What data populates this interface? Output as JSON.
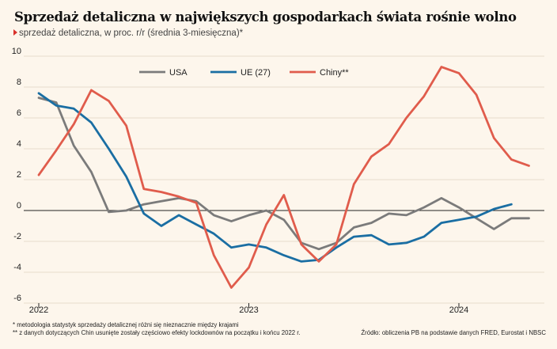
{
  "title": "Sprzedaż detaliczna w największych gospodarkach świata rośnie wolno",
  "subtitle": "sprzedaż detaliczna, w proc. r/r (średnia 3-miesięczna)*",
  "footnotes": [
    "* metodologia statystyk sprzedaży detalicznej różni się nieznacznie między krajami",
    "** z danych dotyczących Chin usunięte zostały częściowo efekty lockdownów na początku i końcu 2022 r."
  ],
  "source": "Źródło: obliczenia PB na podstawie danych FRED, Eurostat i NBSC",
  "colors": {
    "USA": "#7b7b7b",
    "UE (27)": "#1a6ea3",
    "Chiny**": "#e05c4c"
  },
  "chart_data": {
    "type": "line",
    "ylim": [
      -6,
      10
    ],
    "yticks": [
      -6,
      -4,
      -2,
      0,
      2,
      4,
      6,
      8,
      10
    ],
    "x_tick_labels": [
      "2022",
      "2023",
      "2024"
    ],
    "x_tick_month_index": [
      0,
      12,
      24
    ],
    "x_range_months": [
      -0.2,
      28.6
    ],
    "grid": true,
    "legend_position": "top-center",
    "series": [
      {
        "name": "USA",
        "x": [
          0,
          1,
          2,
          3,
          4,
          5,
          6,
          7,
          8,
          9,
          10,
          11,
          12,
          13,
          14,
          15,
          16,
          17,
          18,
          19,
          20,
          21,
          22,
          23,
          24,
          25,
          26,
          27,
          28
        ],
        "values": [
          7.3,
          7.0,
          4.2,
          2.5,
          -0.1,
          0.0,
          0.4,
          0.6,
          0.8,
          0.6,
          -0.3,
          -0.7,
          -0.3,
          0.0,
          -0.6,
          -2.1,
          -2.5,
          -2.1,
          -1.1,
          -0.8,
          -0.2,
          -0.3,
          0.2,
          0.8,
          0.2,
          -0.5,
          -1.2,
          -0.5,
          -0.5
        ]
      },
      {
        "name": "UE (27)",
        "x": [
          0,
          1,
          2,
          3,
          4,
          5,
          6,
          7,
          8,
          9,
          10,
          11,
          12,
          13,
          14,
          15,
          16,
          17,
          18,
          19,
          20,
          21,
          22,
          23,
          24,
          25,
          26,
          27
        ],
        "values": [
          7.6,
          6.8,
          6.6,
          5.7,
          4.0,
          2.2,
          -0.2,
          -1.0,
          -0.3,
          -0.9,
          -1.5,
          -2.4,
          -2.2,
          -2.4,
          -2.9,
          -3.3,
          -3.2,
          -2.4,
          -1.7,
          -1.6,
          -2.2,
          -2.1,
          -1.7,
          -0.8,
          -0.6,
          -0.4,
          0.1,
          0.4
        ]
      },
      {
        "name": "Chiny**",
        "x": [
          0,
          1,
          2,
          3,
          4,
          5,
          6,
          7,
          8,
          9,
          10,
          11,
          12,
          13,
          14,
          15,
          16,
          17,
          18,
          19,
          20,
          21,
          22,
          23,
          24,
          25,
          26,
          27,
          28
        ],
        "values": [
          2.3,
          3.9,
          5.6,
          7.8,
          7.1,
          5.5,
          1.4,
          1.2,
          0.9,
          0.5,
          -2.9,
          -5.0,
          -3.7,
          -0.9,
          1.0,
          -2.2,
          -3.3,
          -2.2,
          1.7,
          3.5,
          4.3,
          6.0,
          7.4,
          9.3,
          8.9,
          7.5,
          4.7,
          3.3,
          2.9
        ]
      }
    ]
  }
}
